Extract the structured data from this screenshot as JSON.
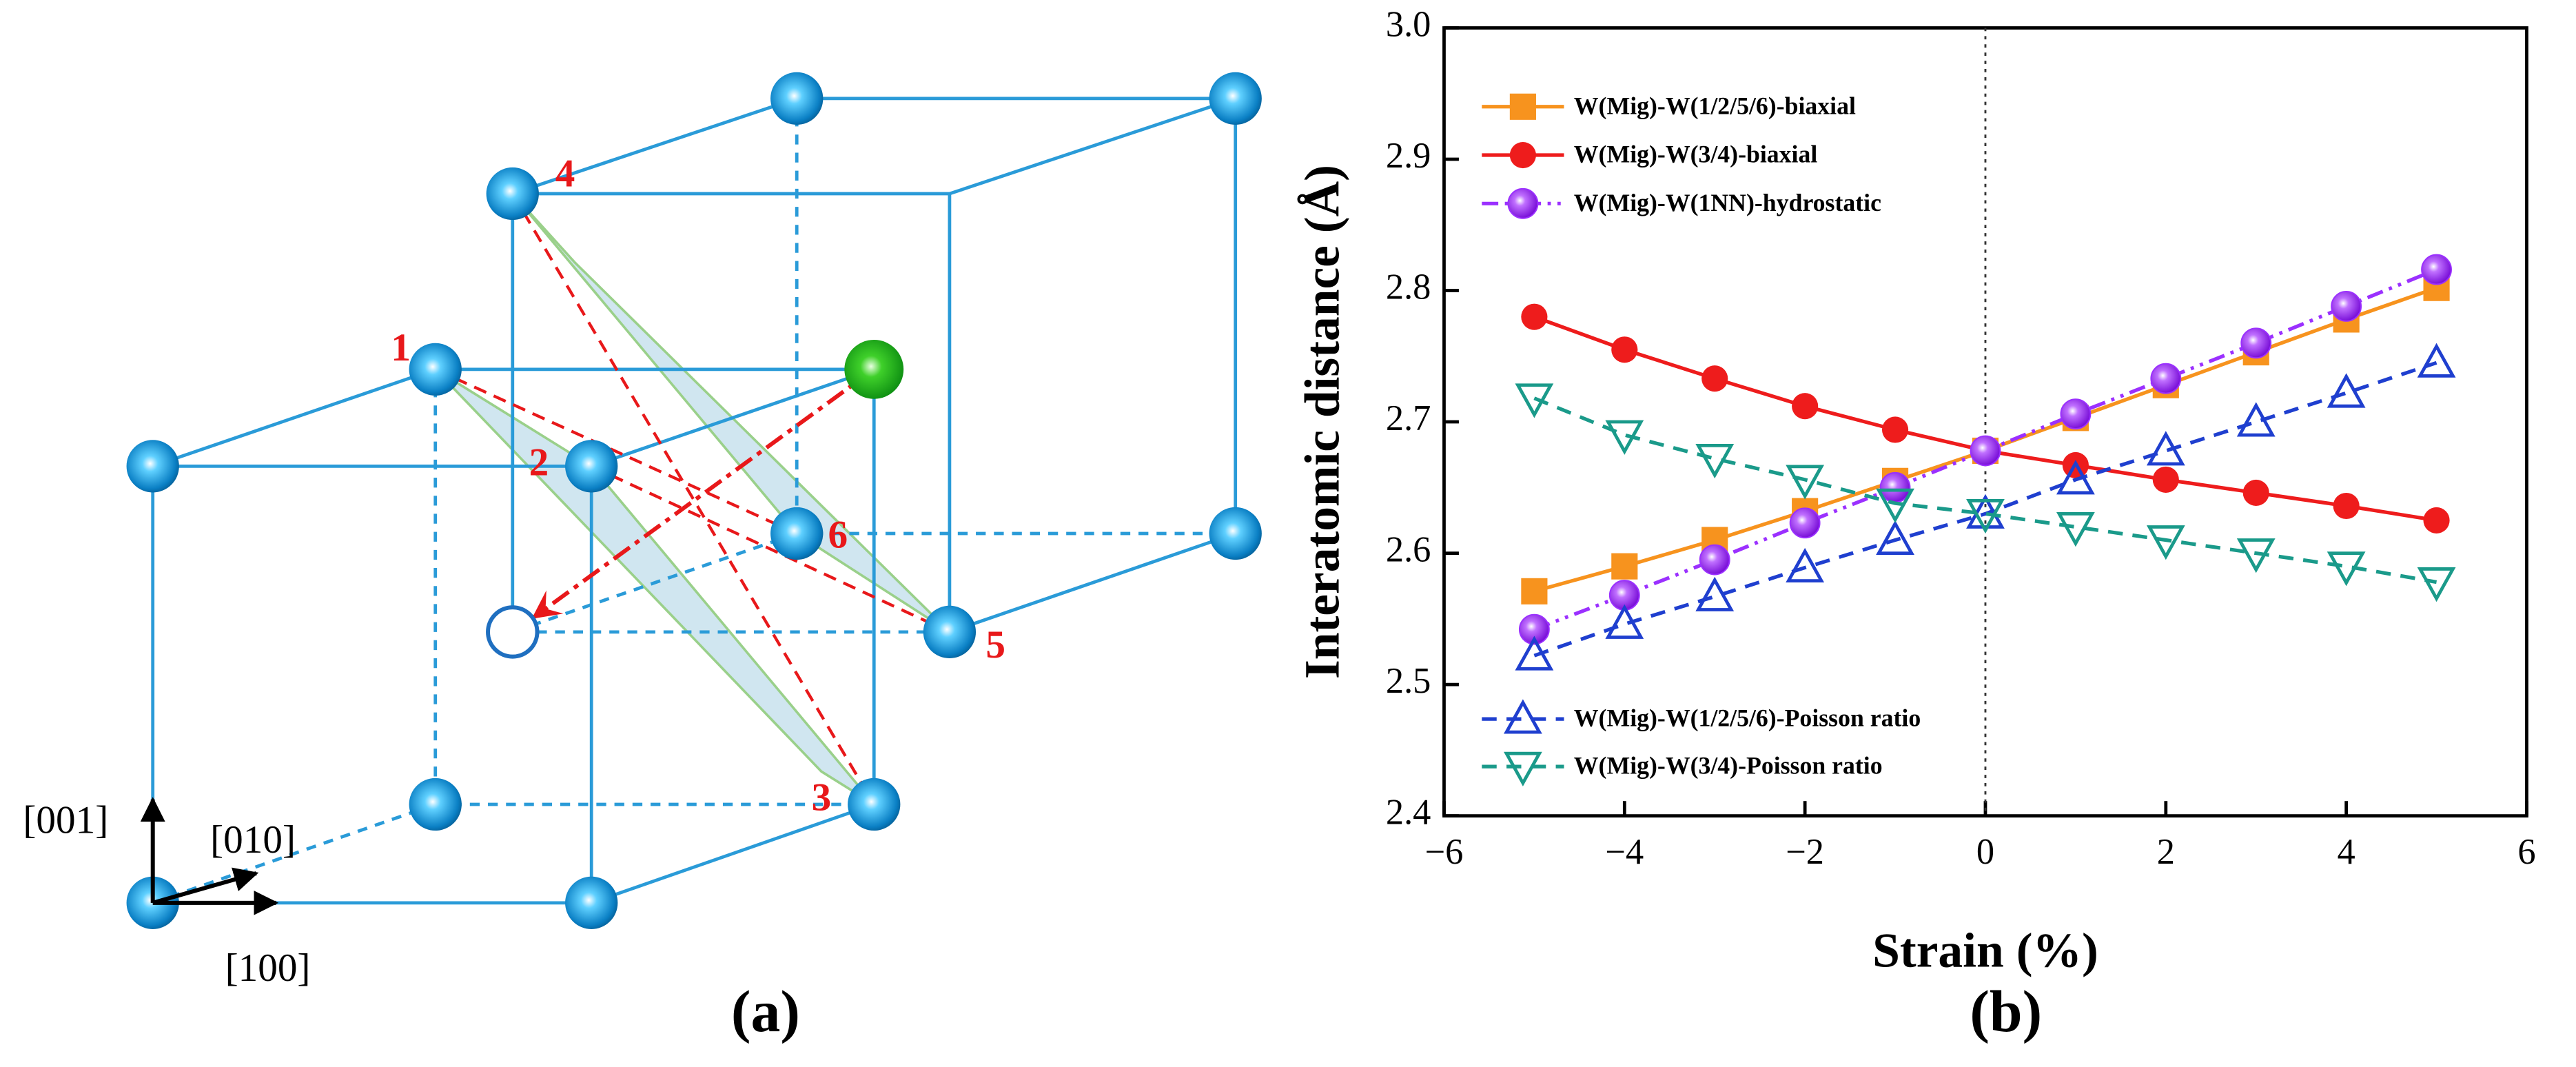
{
  "diagram": {
    "atom_labels": [
      "1",
      "2",
      "3",
      "4",
      "5",
      "6"
    ],
    "directions": [
      "[001]",
      "[010]",
      "[100]"
    ],
    "panel_label": "(a)"
  },
  "chart_data": {
    "type": "line",
    "panel_label": "(b)",
    "xlabel": "Strain (%)",
    "ylabel": "Interatomic distance (Å)",
    "x": [
      -5,
      -4,
      -3,
      -2,
      -1,
      0,
      1,
      2,
      3,
      4,
      5
    ],
    "series": [
      {
        "name": "W(Mig)-W(1/2/5/6)-biaxial",
        "color": "#f7931e",
        "marker": "square",
        "dash": "solid",
        "legend": "upper left",
        "values": [
          2.571,
          2.59,
          2.61,
          2.632,
          2.655,
          2.678,
          2.703,
          2.728,
          2.753,
          2.778,
          2.802
        ]
      },
      {
        "name": "W(Mig)-W(3/4)-biaxial",
        "color": "#ee1c1c",
        "marker": "circle",
        "dash": "solid",
        "legend": "upper left",
        "values": [
          2.78,
          2.755,
          2.733,
          2.712,
          2.694,
          2.678,
          2.667,
          2.656,
          2.646,
          2.636,
          2.625
        ]
      },
      {
        "name": "W(Mig)-W(1NN)-hydrostatic",
        "color": "#9b30ff",
        "marker": "sphere",
        "dash": "dash-dot-dot",
        "legend": "upper left",
        "values": [
          2.542,
          2.568,
          2.595,
          2.623,
          2.65,
          2.678,
          2.706,
          2.733,
          2.76,
          2.788,
          2.816
        ]
      },
      {
        "name": "W(Mig)-W(1/2/5/6)-Poisson ratio",
        "color": "#1f3fcf",
        "marker": "triangle-up",
        "dash": "dashed",
        "legend": "lower left",
        "values": [
          2.522,
          2.546,
          2.567,
          2.589,
          2.61,
          2.63,
          2.656,
          2.678,
          2.7,
          2.722,
          2.745
        ]
      },
      {
        "name": "W(Mig)-W(3/4)-Poisson ratio",
        "color": "#1a9a8a",
        "marker": "triangle-down",
        "dash": "dashed",
        "legend": "lower left",
        "values": [
          2.718,
          2.69,
          2.672,
          2.656,
          2.638,
          2.63,
          2.62,
          2.61,
          2.6,
          2.59,
          2.578
        ]
      }
    ],
    "xlim": [
      -6,
      6
    ],
    "xticks": [
      {
        "value": -6,
        "label": "−6"
      },
      {
        "value": -4,
        "label": "−4"
      },
      {
        "value": -2,
        "label": "−2"
      },
      0,
      2,
      4,
      6
    ],
    "ylim": [
      2.4,
      3.0
    ],
    "yticks": [
      2.4,
      2.5,
      2.6,
      2.7,
      2.8,
      2.9,
      {
        "value": 3,
        "label": "3.0"
      }
    ],
    "vline": 0
  }
}
